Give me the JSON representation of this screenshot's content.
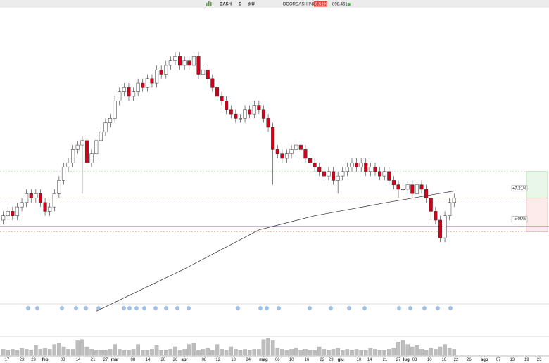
{
  "header": {
    "symbol": "DASH",
    "interval": "D",
    "mode": "tkU",
    "name": "DOORDASH INC.",
    "change": "-0.51%",
    "volume": "898.461"
  },
  "chart_data": {
    "type": "candlestick",
    "open": [
      108,
      109,
      110,
      109,
      111,
      112,
      114,
      113,
      114,
      112,
      110,
      111,
      114,
      117,
      120,
      121,
      124,
      125,
      126,
      121,
      123,
      126,
      128,
      130,
      131,
      135,
      137,
      138,
      136,
      137,
      139,
      138,
      140,
      139,
      142,
      141,
      143,
      144,
      145,
      143,
      144,
      143,
      145,
      141,
      142,
      140,
      138,
      136,
      135,
      133,
      132,
      131,
      131,
      133,
      132,
      134,
      133,
      131,
      129,
      124,
      123,
      122,
      123,
      124,
      125,
      124,
      122,
      121,
      120,
      119,
      118,
      119,
      117,
      118,
      119,
      120,
      121,
      120,
      121,
      119,
      120,
      119,
      118,
      119,
      117,
      116,
      115,
      115,
      116,
      114,
      116,
      115,
      113,
      110,
      108,
      104,
      109,
      112
    ],
    "high": [
      110,
      111,
      111,
      112,
      113,
      115,
      115,
      115,
      115,
      113,
      112,
      115,
      118,
      121,
      122,
      125,
      126,
      127,
      127,
      124,
      127,
      129,
      131,
      132,
      136,
      138,
      139,
      139,
      138,
      140,
      140,
      141,
      141,
      143,
      143,
      144,
      145,
      146,
      146,
      145,
      145,
      146,
      146,
      143,
      143,
      141,
      139,
      137,
      136,
      134,
      133,
      132,
      134,
      134,
      135,
      135,
      134,
      132,
      130,
      125,
      124,
      124,
      125,
      126,
      126,
      125,
      123,
      122,
      121,
      120,
      120,
      120,
      119,
      120,
      121,
      122,
      122,
      122,
      122,
      121,
      121,
      120,
      120,
      120,
      118,
      117,
      116,
      117,
      117,
      117,
      117,
      116,
      114,
      111,
      109,
      110,
      113,
      114
    ],
    "low": [
      107,
      108,
      108,
      108,
      110,
      111,
      112,
      112,
      111,
      109,
      109,
      110,
      113,
      116,
      119,
      120,
      123,
      114,
      120,
      120,
      122,
      125,
      127,
      129,
      130,
      134,
      136,
      135,
      135,
      136,
      137,
      137,
      138,
      138,
      140,
      140,
      142,
      143,
      142,
      142,
      142,
      142,
      140,
      140,
      139,
      137,
      135,
      134,
      132,
      131,
      130,
      130,
      130,
      131,
      131,
      132,
      130,
      128,
      116,
      122,
      121,
      121,
      122,
      123,
      123,
      121,
      120,
      119,
      118,
      117,
      117,
      116,
      114,
      117,
      118,
      119,
      119,
      119,
      118,
      118,
      118,
      117,
      117,
      116,
      115,
      113,
      114,
      114,
      113,
      113,
      114,
      112,
      108,
      107,
      103,
      103,
      108,
      111
    ],
    "close": [
      109,
      110,
      109,
      111,
      112,
      114,
      113,
      114,
      112,
      110,
      111,
      114,
      117,
      120,
      121,
      124,
      125,
      126,
      121,
      123,
      126,
      128,
      130,
      131,
      135,
      137,
      138,
      136,
      137,
      139,
      138,
      140,
      139,
      142,
      141,
      143,
      144,
      145,
      143,
      144,
      143,
      145,
      141,
      142,
      140,
      138,
      136,
      135,
      133,
      132,
      131,
      131,
      133,
      132,
      134,
      133,
      131,
      129,
      124,
      123,
      122,
      123,
      124,
      125,
      124,
      122,
      121,
      120,
      119,
      118,
      119,
      117,
      118,
      119,
      120,
      121,
      120,
      121,
      119,
      120,
      119,
      118,
      119,
      117,
      116,
      115,
      115,
      116,
      114,
      116,
      115,
      113,
      110,
      108,
      104,
      109,
      112,
      113
    ],
    "volume": [
      5,
      4,
      5,
      4,
      6,
      5,
      4,
      8,
      5,
      6,
      5,
      9,
      10,
      7,
      5,
      5,
      12,
      13,
      7,
      5,
      4,
      4,
      4,
      5,
      9,
      5,
      4,
      4,
      5,
      9,
      4,
      4,
      5,
      8,
      4,
      4,
      5,
      7,
      4,
      5,
      9,
      10,
      4,
      5,
      6,
      4,
      9,
      5,
      4,
      7,
      5,
      4,
      5,
      4,
      5,
      5,
      13,
      14,
      12,
      6,
      5,
      4,
      5,
      6,
      4,
      5,
      4,
      4,
      7,
      5,
      4,
      5,
      6,
      4,
      5,
      4,
      5,
      4,
      4,
      6,
      5,
      4,
      4,
      5,
      6,
      11,
      12,
      9,
      7,
      8,
      5,
      4,
      6,
      5,
      7,
      9,
      6,
      5
    ],
    "up_color": "#ffffff",
    "down_color": "#d0021b",
    "volume_color": "#bdbdbd",
    "ma": {
      "x": [
        20,
        39,
        55,
        67,
        82,
        97
      ],
      "values": [
        87.4,
        97,
        105.8,
        109,
        111.9,
        114.6
      ],
      "color": "#222222"
    },
    "reference_line": {
      "value": 106.6,
      "color": "#d36bd3"
    },
    "target": {
      "price": 119,
      "label": "+7.21%"
    },
    "stop": {
      "price": 105.35,
      "label": "-5.09%"
    },
    "xlim": [
      -0.7,
      117.4
    ],
    "ylim": [
      87,
      155
    ],
    "xticks": [
      {
        "value": 0.8,
        "label": "17"
      },
      {
        "value": 4,
        "label": "23"
      },
      {
        "value": 6.5,
        "label": "29"
      },
      {
        "value": 9,
        "label": "feb"
      },
      {
        "value": 12.8,
        "label": "08"
      },
      {
        "value": 16.1,
        "label": "14"
      },
      {
        "value": 19.3,
        "label": "21"
      },
      {
        "value": 22,
        "label": "27"
      },
      {
        "value": 24,
        "label": "mar"
      },
      {
        "value": 27.9,
        "label": "08"
      },
      {
        "value": 31.1,
        "label": "14"
      },
      {
        "value": 34.4,
        "label": "20"
      },
      {
        "value": 37,
        "label": "26"
      },
      {
        "value": 39,
        "label": "apr"
      },
      {
        "value": 43.2,
        "label": "08"
      },
      {
        "value": 46.2,
        "label": "12"
      },
      {
        "value": 49.5,
        "label": "18"
      },
      {
        "value": 52.7,
        "label": "24"
      },
      {
        "value": 56,
        "label": "mag"
      },
      {
        "value": 59,
        "label": "06"
      },
      {
        "value": 62,
        "label": "10"
      },
      {
        "value": 65.3,
        "label": "16"
      },
      {
        "value": 68.6,
        "label": "22"
      },
      {
        "value": 70.5,
        "label": "29"
      },
      {
        "value": 72.6,
        "label": "giu"
      },
      {
        "value": 76.5,
        "label": "10"
      },
      {
        "value": 78.8,
        "label": "14"
      },
      {
        "value": 82.1,
        "label": "21"
      },
      {
        "value": 85,
        "label": "27"
      },
      {
        "value": 86.7,
        "label": "lug"
      },
      {
        "value": 88.5,
        "label": "03"
      },
      {
        "value": 91.7,
        "label": "10"
      },
      {
        "value": 94.8,
        "label": "16"
      },
      {
        "value": 97.4,
        "label": "22"
      },
      {
        "value": 100.2,
        "label": "26"
      },
      {
        "value": 103.5,
        "label": "ago"
      },
      {
        "value": 106.5,
        "label": "07"
      },
      {
        "value": 109.5,
        "label": "13"
      },
      {
        "value": 112.6,
        "label": "19"
      },
      {
        "value": 115.3,
        "label": "23"
      }
    ]
  }
}
